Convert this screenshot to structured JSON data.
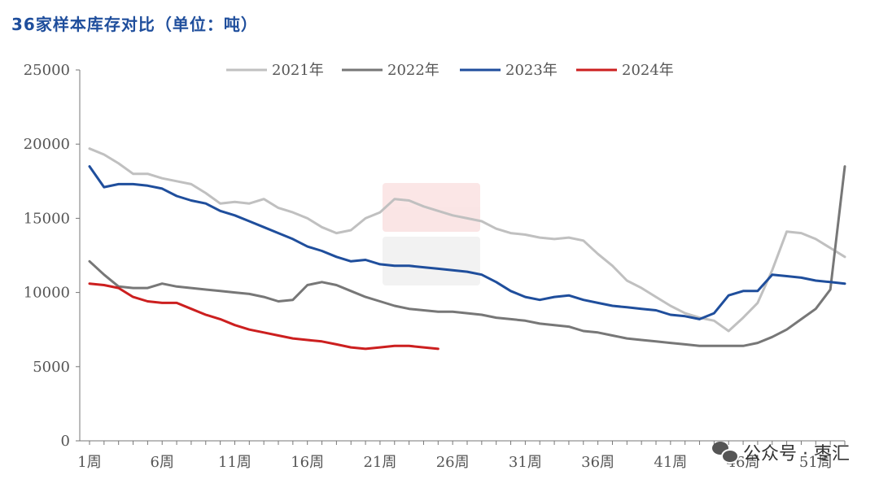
{
  "title": "36家样本库存对比（单位：吨）",
  "watermark": {
    "label": "公众号 · 枣汇"
  },
  "colors": {
    "title": "#1f4e9c",
    "axis": "#666666",
    "series": [
      "#c0c0c0",
      "#777777",
      "#1f4e9c",
      "#cc1f1f"
    ]
  },
  "chart_data": {
    "type": "line",
    "title": "36家样本库存对比（单位：吨）",
    "xlabel": "",
    "ylabel": "",
    "ylim": [
      0,
      25000
    ],
    "yticks": [
      0,
      5000,
      10000,
      15000,
      20000,
      25000
    ],
    "x_tick_labels": [
      {
        "week": 1,
        "label": "1周"
      },
      {
        "week": 6,
        "label": "6周"
      },
      {
        "week": 11,
        "label": "11周"
      },
      {
        "week": 16,
        "label": "16周"
      },
      {
        "week": 21,
        "label": "21周"
      },
      {
        "week": 26,
        "label": "26周"
      },
      {
        "week": 31,
        "label": "31周"
      },
      {
        "week": 36,
        "label": "36周"
      },
      {
        "week": 41,
        "label": "41周"
      },
      {
        "week": 46,
        "label": "46周"
      },
      {
        "week": 51,
        "label": "51周"
      }
    ],
    "xlim": [
      1,
      53
    ],
    "grid": false,
    "legend_position": "top",
    "series": [
      {
        "name": "2021年",
        "color": "#c0c0c0",
        "x": [
          1,
          2,
          3,
          4,
          5,
          6,
          7,
          8,
          9,
          10,
          11,
          12,
          13,
          14,
          15,
          16,
          17,
          18,
          19,
          20,
          21,
          22,
          23,
          24,
          25,
          26,
          27,
          28,
          29,
          30,
          31,
          32,
          33,
          34,
          35,
          36,
          37,
          38,
          39,
          40,
          41,
          42,
          43,
          44,
          45,
          46,
          47,
          48,
          49,
          50,
          51,
          52,
          53
        ],
        "values": [
          19700,
          19300,
          18700,
          18000,
          18000,
          17700,
          17500,
          17300,
          16700,
          16000,
          16100,
          16000,
          16300,
          15700,
          15400,
          15000,
          14400,
          14000,
          14200,
          15000,
          15400,
          16300,
          16200,
          15800,
          15500,
          15200,
          15000,
          14800,
          14300,
          14000,
          13900,
          13700,
          13600,
          13700,
          13500,
          12600,
          11800,
          10800,
          10300,
          9700,
          9100,
          8600,
          8300,
          8100,
          7400,
          8300,
          9300,
          11500,
          14100,
          14000,
          13600,
          13000,
          12400
        ]
      },
      {
        "name": "2022年",
        "color": "#777777",
        "x": [
          1,
          2,
          3,
          4,
          5,
          6,
          7,
          8,
          9,
          10,
          11,
          12,
          13,
          14,
          15,
          16,
          17,
          18,
          19,
          20,
          21,
          22,
          23,
          24,
          25,
          26,
          27,
          28,
          29,
          30,
          31,
          32,
          33,
          34,
          35,
          36,
          37,
          38,
          39,
          40,
          41,
          42,
          43,
          44,
          45,
          46,
          47,
          48,
          49,
          50,
          51,
          52,
          53
        ],
        "values": [
          12100,
          11200,
          10400,
          10300,
          10300,
          10600,
          10400,
          10300,
          10200,
          10100,
          10000,
          9900,
          9700,
          9400,
          9500,
          10500,
          10700,
          10500,
          10100,
          9700,
          9400,
          9100,
          8900,
          8800,
          8700,
          8700,
          8600,
          8500,
          8300,
          8200,
          8100,
          7900,
          7800,
          7700,
          7400,
          7300,
          7100,
          6900,
          6800,
          6700,
          6600,
          6500,
          6400,
          6400,
          6400,
          6400,
          6600,
          7000,
          7500,
          8200,
          8900,
          10200,
          18500
        ]
      },
      {
        "name": "2023年",
        "color": "#1f4e9c",
        "x": [
          1,
          2,
          3,
          4,
          5,
          6,
          7,
          8,
          9,
          10,
          11,
          12,
          13,
          14,
          15,
          16,
          17,
          18,
          19,
          20,
          21,
          22,
          23,
          24,
          25,
          26,
          27,
          28,
          29,
          30,
          31,
          32,
          33,
          34,
          35,
          36,
          37,
          38,
          39,
          40,
          41,
          42,
          43,
          44,
          45,
          46,
          47,
          48,
          49,
          50,
          51,
          52,
          53
        ],
        "values": [
          18500,
          17100,
          17300,
          17300,
          17200,
          17000,
          16500,
          16200,
          16000,
          15500,
          15200,
          14800,
          14400,
          14000,
          13600,
          13100,
          12800,
          12400,
          12100,
          12200,
          11900,
          11800,
          11800,
          11700,
          11600,
          11500,
          11400,
          11200,
          10700,
          10100,
          9700,
          9500,
          9700,
          9800,
          9500,
          9300,
          9100,
          9000,
          8900,
          8800,
          8500,
          8400,
          8200,
          8600,
          9800,
          10100,
          10100,
          11200,
          11100,
          11000,
          10800,
          10700,
          10600
        ]
      },
      {
        "name": "2024年",
        "color": "#cc1f1f",
        "x": [
          1,
          2,
          3,
          4,
          5,
          6,
          7,
          8,
          9,
          10,
          11,
          12,
          13,
          14,
          15,
          16,
          17,
          18,
          19,
          20,
          21,
          22,
          23,
          24,
          25
        ],
        "values": [
          10600,
          10500,
          10300,
          9700,
          9400,
          9300,
          9300,
          8900,
          8500,
          8200,
          7800,
          7500,
          7300,
          7100,
          6900,
          6800,
          6700,
          6500,
          6300,
          6200,
          6300,
          6400,
          6400,
          6300,
          6200
        ]
      }
    ]
  }
}
